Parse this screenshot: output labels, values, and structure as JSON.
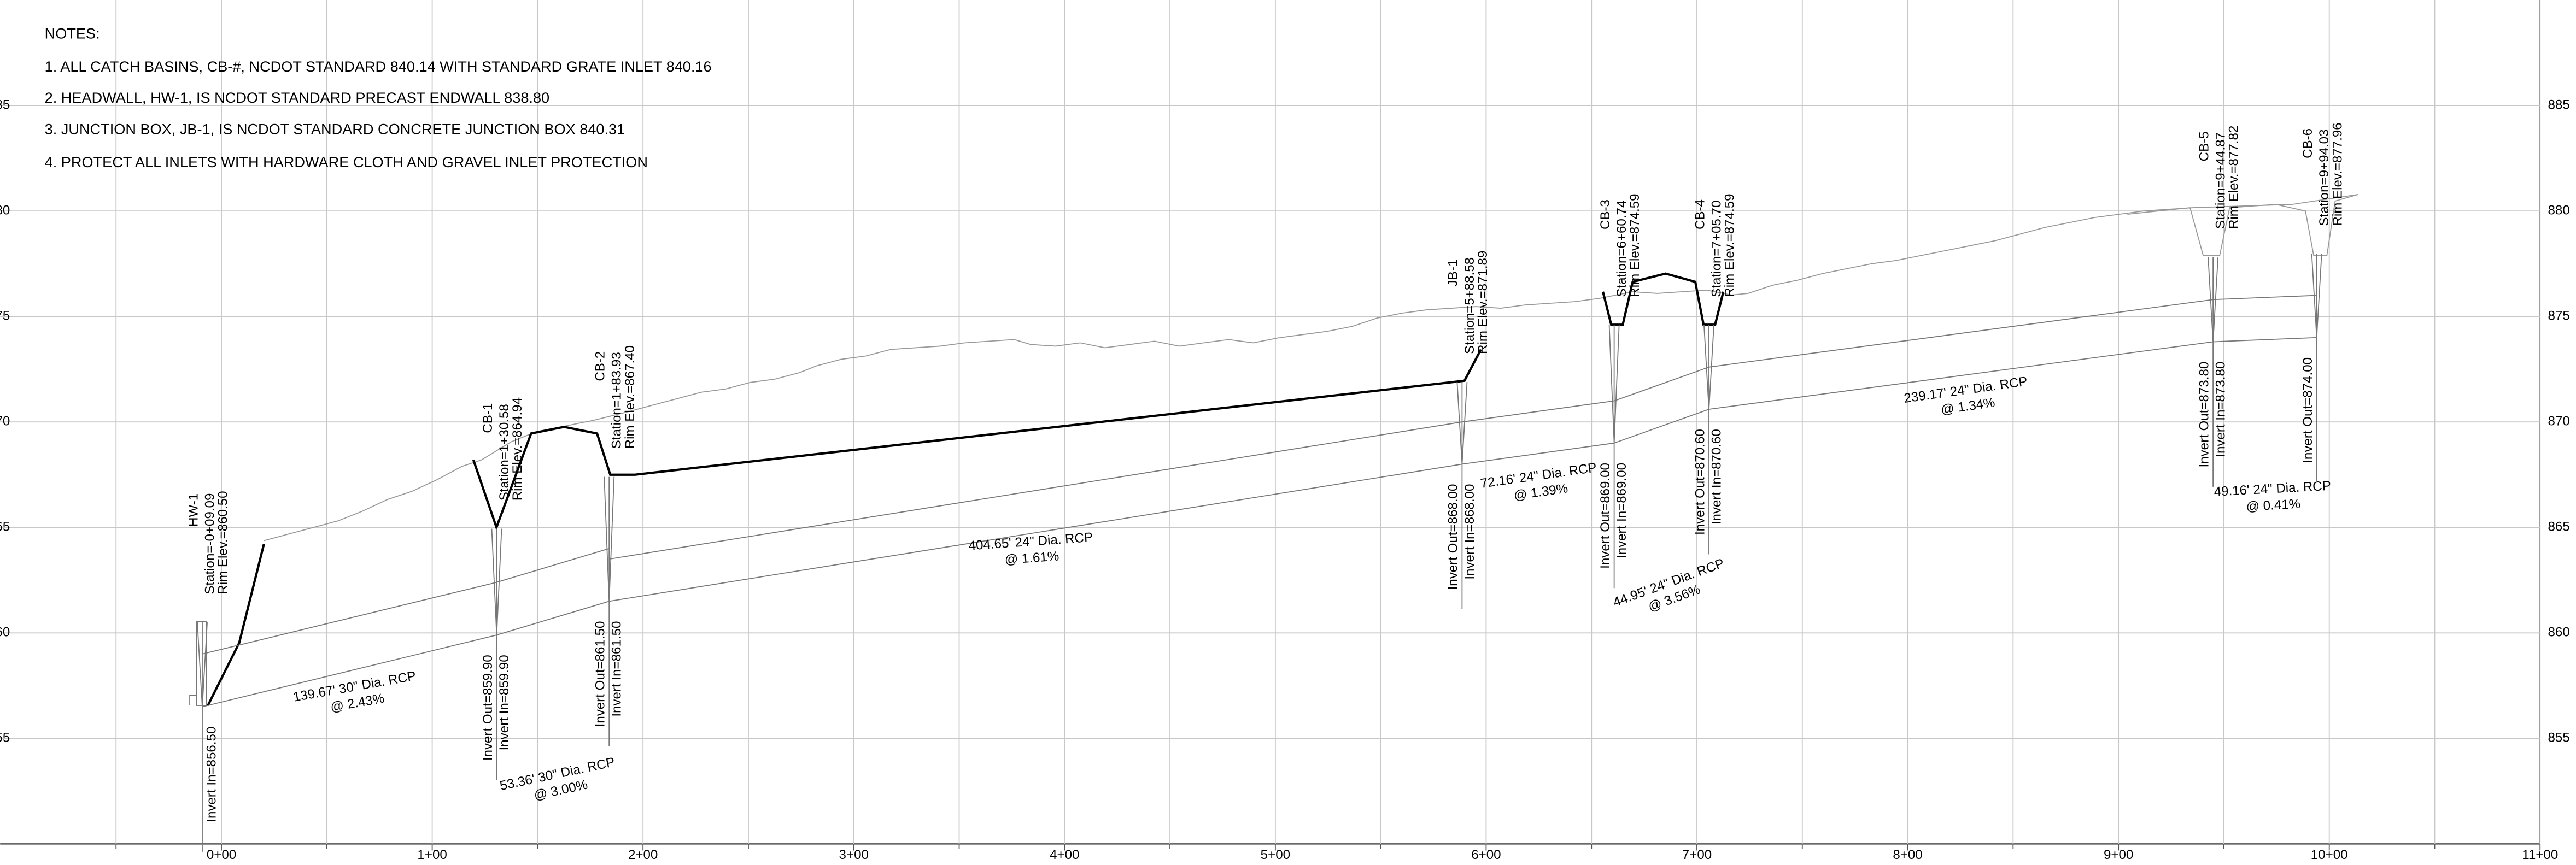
{
  "notes": {
    "title": "NOTES:",
    "items": [
      "1. ALL CATCH BASINS, CB-#,  NCDOT STANDARD 840.14 WITH STANDARD GRATE INLET 840.16",
      "2. HEADWALL, HW-1,  IS NCDOT STANDARD PRECAST ENDWALL 838.80",
      "3. JUNCTION BOX, JB-1, IS NCDOT STANDARD CONCRETE JUNCTION BOX 840.31",
      "4. PROTECT ALL INLETS WITH HARDWARE CLOTH AND GRAVEL INLET PROTECTION"
    ]
  },
  "profile": {
    "xlim": [
      -105,
      1117
    ],
    "ylim": [
      850,
      890
    ],
    "xticks": [
      {
        "value": 0,
        "label": "0+00"
      },
      {
        "value": 100,
        "label": "1+00"
      },
      {
        "value": 200,
        "label": "2+00"
      },
      {
        "value": 300,
        "label": "3+00"
      },
      {
        "value": 400,
        "label": "4+00"
      },
      {
        "value": 500,
        "label": "5+00"
      },
      {
        "value": 600,
        "label": "6+00"
      },
      {
        "value": 700,
        "label": "7+00"
      },
      {
        "value": 800,
        "label": "8+00"
      },
      {
        "value": 900,
        "label": "9+00"
      },
      {
        "value": 1000,
        "label": "10+00"
      },
      {
        "value": 1100,
        "label": "11+00"
      }
    ],
    "xminor": [
      -50,
      50,
      150,
      250,
      350,
      450,
      550,
      650,
      750,
      850,
      950,
      1050
    ],
    "yticks": [
      855,
      860,
      865,
      870,
      875,
      880,
      885
    ],
    "structures": [
      {
        "name": "HW-1",
        "station": -9.09,
        "station_label": "Station=-0+09.09",
        "rim": 860.5,
        "rim_label": "Rim Elev.=860.50",
        "inverts": [
          {
            "value": 856.5,
            "label": "Invert In=856.50"
          }
        ]
      },
      {
        "name": "CB-1",
        "station": 130.58,
        "station_label": "Station=1+30.58",
        "rim": 864.94,
        "rim_label": "Rim Elev.=864.94",
        "inverts": [
          {
            "value": 859.9,
            "label": "Invert Out=859.90"
          },
          {
            "value": 859.9,
            "label": "Invert In=859.90"
          }
        ]
      },
      {
        "name": "CB-2",
        "station": 183.93,
        "station_label": "Station=1+83.93",
        "rim": 867.4,
        "rim_label": "Rim Elev.=867.40",
        "inverts": [
          {
            "value": 861.5,
            "label": "Invert Out=861.50"
          },
          {
            "value": 861.5,
            "label": "Invert In=861.50"
          }
        ]
      },
      {
        "name": "JB-1",
        "station": 588.58,
        "station_label": "Station=5+88.58",
        "rim": 871.89,
        "rim_label": "Rim Elev.=871.89",
        "inverts": [
          {
            "value": 868.0,
            "label": "Invert Out=868.00"
          },
          {
            "value": 868.0,
            "label": "Invert In=868.00"
          }
        ]
      },
      {
        "name": "CB-3",
        "station": 660.74,
        "station_label": "Station=6+60.74",
        "rim": 874.59,
        "rim_label": "Rim Elev.=874.59",
        "inverts": [
          {
            "value": 869.0,
            "label": "Invert Out=869.00"
          },
          {
            "value": 869.0,
            "label": "Invert In=869.00"
          }
        ]
      },
      {
        "name": "CB-4",
        "station": 705.7,
        "station_label": "Station=7+05.70",
        "rim": 874.59,
        "rim_label": "Rim Elev.=874.59",
        "inverts": [
          {
            "value": 870.6,
            "label": "Invert Out=870.60"
          },
          {
            "value": 870.6,
            "label": "Invert In=870.60"
          }
        ]
      },
      {
        "name": "CB-5",
        "station": 944.87,
        "station_label": "Station=9+44.87",
        "rim": 877.82,
        "rim_label": "Rim Elev.=877.82",
        "inverts": [
          {
            "value": 873.8,
            "label": "Invert Out=873.80"
          },
          {
            "value": 873.8,
            "label": "Invert In=873.80"
          }
        ]
      },
      {
        "name": "CB-6",
        "station": 994.03,
        "station_label": "Station=9+94.03",
        "rim": 877.96,
        "rim_label": "Rim Elev.=877.96",
        "inverts": [
          {
            "value": 874.0,
            "label": "Invert Out=874.00"
          }
        ]
      }
    ],
    "pipes": [
      {
        "label": [
          "139.67' 30\" Dia. RCP",
          "@ 2.43%"
        ]
      },
      {
        "label": [
          "53.36' 30\" Dia. RCP",
          "@ 3.00%"
        ]
      },
      {
        "label": [
          "404.65' 24\" Dia. RCP",
          "@ 1.61%"
        ]
      },
      {
        "label": [
          "72.16' 24\" Dia. RCP",
          "@ 1.39%"
        ]
      },
      {
        "label": [
          "44.95' 24\" Dia. RCP",
          "@ 3.56%"
        ]
      },
      {
        "label": [
          "239.17' 24\" Dia. RCP",
          "@ 1.34%"
        ]
      },
      {
        "label": [
          "49.16' 24\" Dia. RCP",
          "@ 0.41%"
        ]
      }
    ]
  }
}
